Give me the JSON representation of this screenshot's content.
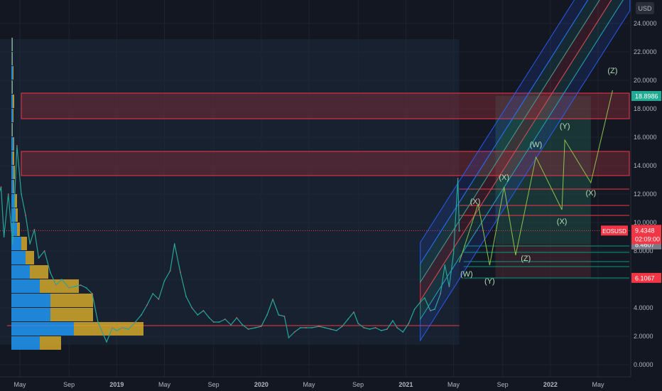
{
  "chart_data": {
    "type": "line",
    "currency": "USD",
    "ylim": [
      -0.3,
      25.0
    ],
    "y_ticks": [
      0,
      2,
      4,
      6,
      8,
      10,
      12,
      14,
      16,
      18,
      20,
      22,
      24
    ],
    "y_tick_labels": [
      "0.0000",
      "2.0000",
      "4.0000",
      "6.0000",
      "8.0000",
      "10.0000",
      "12.0000",
      "14.0000",
      "16.0000",
      "18.0000",
      "20.0000",
      "22.0000",
      "24.0000"
    ],
    "x_ticks": [
      {
        "t": 2018.33,
        "label": "May"
      },
      {
        "t": 2018.67,
        "label": "Sep"
      },
      {
        "t": 2019.0,
        "label": "2019"
      },
      {
        "t": 2019.33,
        "label": "May"
      },
      {
        "t": 2019.67,
        "label": "Sep"
      },
      {
        "t": 2020.0,
        "label": "2020"
      },
      {
        "t": 2020.33,
        "label": "May"
      },
      {
        "t": 2020.67,
        "label": "Sep"
      },
      {
        "t": 2021.0,
        "label": "2021"
      },
      {
        "t": 2021.33,
        "label": "May"
      },
      {
        "t": 2021.67,
        "label": "Sep"
      },
      {
        "t": 2022.0,
        "label": "2022"
      },
      {
        "t": 2022.33,
        "label": "May"
      }
    ],
    "price_series": {
      "name": "EOSUSD",
      "points": [
        [
          2018.0,
          6.0
        ],
        [
          2018.04,
          9.5
        ],
        [
          2018.07,
          16.5
        ],
        [
          2018.09,
          13.0
        ],
        [
          2018.11,
          22.9
        ],
        [
          2018.13,
          18.5
        ],
        [
          2018.17,
          11.5
        ],
        [
          2018.2,
          12.5
        ],
        [
          2018.22,
          9.0
        ],
        [
          2018.25,
          12.0
        ],
        [
          2018.28,
          8.5
        ],
        [
          2018.31,
          15.4
        ],
        [
          2018.34,
          12.0
        ],
        [
          2018.37,
          10.5
        ],
        [
          2018.4,
          8.5
        ],
        [
          2018.43,
          9.5
        ],
        [
          2018.46,
          7.5
        ],
        [
          2018.5,
          8.0
        ],
        [
          2018.54,
          6.5
        ],
        [
          2018.58,
          5.6
        ],
        [
          2018.62,
          6.0
        ],
        [
          2018.67,
          5.4
        ],
        [
          2018.71,
          5.5
        ],
        [
          2018.75,
          5.6
        ],
        [
          2018.79,
          5.4
        ],
        [
          2018.83,
          5.0
        ],
        [
          2018.87,
          3.0
        ],
        [
          2018.9,
          2.3
        ],
        [
          2018.93,
          1.6
        ],
        [
          2018.97,
          2.6
        ],
        [
          2019.0,
          2.4
        ],
        [
          2019.04,
          2.6
        ],
        [
          2019.08,
          2.5
        ],
        [
          2019.12,
          2.9
        ],
        [
          2019.17,
          3.5
        ],
        [
          2019.21,
          4.2
        ],
        [
          2019.25,
          5.0
        ],
        [
          2019.29,
          4.6
        ],
        [
          2019.33,
          5.9
        ],
        [
          2019.37,
          6.6
        ],
        [
          2019.4,
          8.5
        ],
        [
          2019.44,
          6.5
        ],
        [
          2019.48,
          4.8
        ],
        [
          2019.52,
          4.0
        ],
        [
          2019.56,
          3.5
        ],
        [
          2019.6,
          3.8
        ],
        [
          2019.64,
          3.3
        ],
        [
          2019.67,
          3.0
        ],
        [
          2019.71,
          3.0
        ],
        [
          2019.75,
          3.2
        ],
        [
          2019.79,
          2.8
        ],
        [
          2019.83,
          3.3
        ],
        [
          2019.87,
          2.8
        ],
        [
          2019.91,
          2.5
        ],
        [
          2019.96,
          2.6
        ],
        [
          2020.0,
          2.7
        ],
        [
          2020.04,
          3.5
        ],
        [
          2020.08,
          4.6
        ],
        [
          2020.12,
          3.5
        ],
        [
          2020.16,
          3.4
        ],
        [
          2020.19,
          1.9
        ],
        [
          2020.23,
          2.3
        ],
        [
          2020.27,
          2.6
        ],
        [
          2020.31,
          2.6
        ],
        [
          2020.35,
          2.6
        ],
        [
          2020.4,
          2.7
        ],
        [
          2020.44,
          2.6
        ],
        [
          2020.48,
          2.5
        ],
        [
          2020.52,
          2.4
        ],
        [
          2020.56,
          2.7
        ],
        [
          2020.6,
          3.2
        ],
        [
          2020.64,
          3.7
        ],
        [
          2020.67,
          2.9
        ],
        [
          2020.71,
          2.6
        ],
        [
          2020.75,
          2.5
        ],
        [
          2020.79,
          2.6
        ],
        [
          2020.83,
          2.4
        ],
        [
          2020.87,
          2.5
        ],
        [
          2020.91,
          3.1
        ],
        [
          2020.94,
          2.6
        ],
        [
          2020.98,
          2.3
        ],
        [
          2021.02,
          2.9
        ],
        [
          2021.06,
          3.9
        ],
        [
          2021.1,
          4.4
        ],
        [
          2021.13,
          4.7
        ],
        [
          2021.17,
          3.8
        ],
        [
          2021.2,
          3.9
        ],
        [
          2021.24,
          5.0
        ],
        [
          2021.27,
          7.0
        ],
        [
          2021.3,
          5.5
        ],
        [
          2021.33,
          7.8
        ],
        [
          2021.36,
          13.1
        ],
        [
          2021.37,
          9.4
        ]
      ]
    },
    "current_price": {
      "label": "EOSUSD",
      "value": 9.4348,
      "price_text": "9.4348",
      "timer_text": "02:09:00",
      "color": "#f23645"
    },
    "price_labels": [
      {
        "value": 18.8986,
        "text": "18.8986",
        "color": "#22ab94"
      },
      {
        "value": 8.4607,
        "text": "8.4607",
        "color": "#787b86"
      },
      {
        "value": 6.1067,
        "text": "6.1067",
        "color": "#f23645"
      }
    ],
    "resistance_zones": [
      {
        "top": 19.1,
        "bottom": 17.3
      },
      {
        "top": 15.0,
        "bottom": 13.3
      }
    ],
    "wave_labels": [
      {
        "t": 2021.42,
        "y": 6.2,
        "text": "(W)"
      },
      {
        "t": 2021.58,
        "y": 5.7,
        "text": "(Y)"
      },
      {
        "t": 2021.48,
        "y": 11.3,
        "text": "(X)"
      },
      {
        "t": 2021.68,
        "y": 13.0,
        "text": "(X)"
      },
      {
        "t": 2021.83,
        "y": 7.3,
        "text": "(Z)"
      },
      {
        "t": 2021.9,
        "y": 15.3,
        "text": "(W)"
      },
      {
        "t": 2022.08,
        "y": 9.9,
        "text": "(X)"
      },
      {
        "t": 2022.1,
        "y": 16.6,
        "text": "(Y)"
      },
      {
        "t": 2022.28,
        "y": 11.9,
        "text": "(X)"
      },
      {
        "t": 2022.43,
        "y": 20.5,
        "text": "(Z)"
      }
    ],
    "projection_path": [
      [
        2021.37,
        7.2
      ],
      [
        2021.5,
        11.3
      ],
      [
        2021.58,
        7.0
      ],
      [
        2021.68,
        12.5
      ],
      [
        2021.76,
        7.7
      ],
      [
        2021.9,
        14.6
      ],
      [
        2022.08,
        10.9
      ],
      [
        2022.1,
        15.8
      ],
      [
        2022.28,
        12.8
      ],
      [
        2022.43,
        19.3
      ]
    ]
  }
}
